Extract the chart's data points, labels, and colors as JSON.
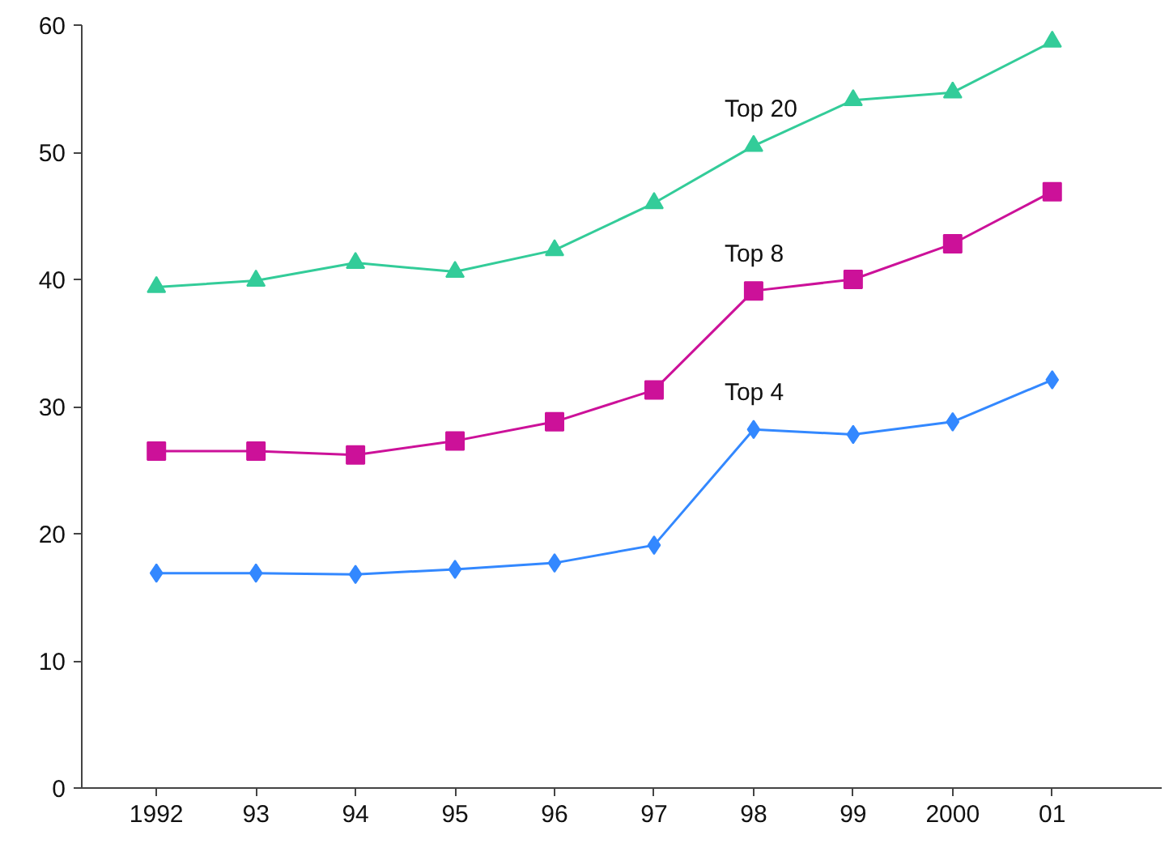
{
  "chart_data": {
    "type": "line",
    "categories": [
      "1992",
      "93",
      "94",
      "95",
      "96",
      "97",
      "98",
      "99",
      "2000",
      "01"
    ],
    "ylim": [
      0,
      60
    ],
    "yticks": [
      0,
      10,
      20,
      30,
      40,
      50,
      60
    ],
    "grid": false,
    "series": [
      {
        "name": "Top 20",
        "color": "#33cc99",
        "marker": "triangle",
        "values": [
          39.4,
          39.9,
          41.3,
          40.6,
          42.3,
          46.0,
          50.5,
          54.1,
          54.7,
          58.7
        ]
      },
      {
        "name": "Top 8",
        "color": "#cc1199",
        "marker": "square",
        "values": [
          26.5,
          26.5,
          26.2,
          27.3,
          28.8,
          31.3,
          39.1,
          40.0,
          42.8,
          46.9
        ]
      },
      {
        "name": "Top 4",
        "color": "#3388ff",
        "marker": "diamond",
        "values": [
          16.9,
          16.9,
          16.8,
          17.2,
          17.7,
          19.1,
          28.2,
          27.8,
          28.8,
          32.1
        ]
      }
    ]
  }
}
